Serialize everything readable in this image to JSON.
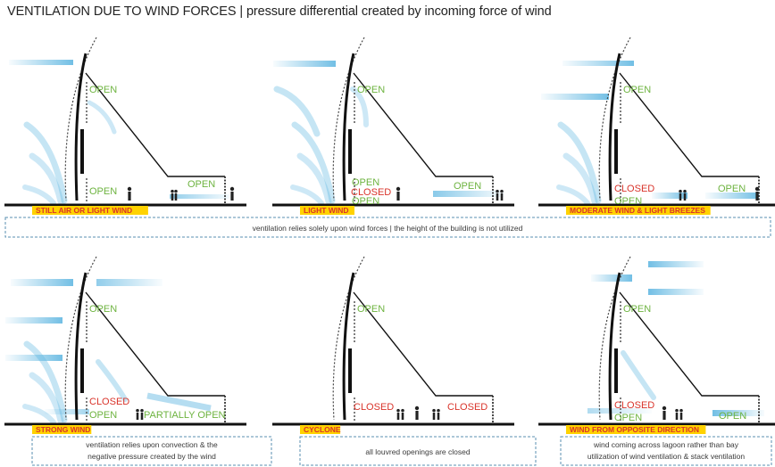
{
  "title": {
    "main": "VENTILATION DUE TO WIND FORCES |",
    "sub": "pressure differential created by incoming force of wind"
  },
  "colors": {
    "open": "#6db33f",
    "closed": "#d9342b",
    "wind": "#5ab4e0",
    "case_highlight": "#ffd200",
    "divider": "#5a8fb0"
  },
  "panels": [
    {
      "case": "STILL AIR OR LIGHT WIND",
      "wind": "light",
      "labels": {
        "top": "OPEN",
        "mid": "OPEN",
        "right": "OPEN"
      },
      "labels_extra": []
    },
    {
      "case": "LIGHT WIND",
      "wind": "light",
      "labels": {
        "top": "OPEN",
        "right": "OPEN"
      },
      "labels_extra": [
        "OPEN",
        "CLOSED",
        "OPEN"
      ]
    },
    {
      "case": "MODERATE WIND & LIGHT BREEZES",
      "wind": "moderate",
      "labels": {
        "top": "OPEN",
        "right": "OPEN"
      },
      "labels_extra": [
        "CLOSED",
        "OPEN"
      ]
    },
    {
      "case": "STRONG WIND",
      "wind": "strong",
      "labels": {
        "top": "OPEN",
        "right": "PARTIALLY OPEN"
      },
      "labels_extra": [
        "CLOSED",
        "OPEN"
      ]
    },
    {
      "case": "CYCLONE",
      "wind": "none",
      "labels": {
        "top": "OPEN",
        "mid": "CLOSED",
        "right": "CLOSED"
      },
      "labels_extra": []
    },
    {
      "case": "WIND FROM OPPOSITE DIRECTION",
      "wind": "opposite",
      "labels": {
        "top": "OPEN",
        "right": "OPEN"
      },
      "labels_extra": [
        "CLOSED",
        "OPEN"
      ]
    }
  ],
  "notes": {
    "row1": "ventilation relies solely upon wind forces | the height of the building is not utilized",
    "strong_1": "ventilation relies upon convection & the",
    "strong_2": "negative pressure created by the wind",
    "cyclone": "all louvred openings are closed",
    "opposite_1": "wind coming across lagoon rather than bay",
    "opposite_2": "utilization of wind ventilation & stack ventilation"
  }
}
